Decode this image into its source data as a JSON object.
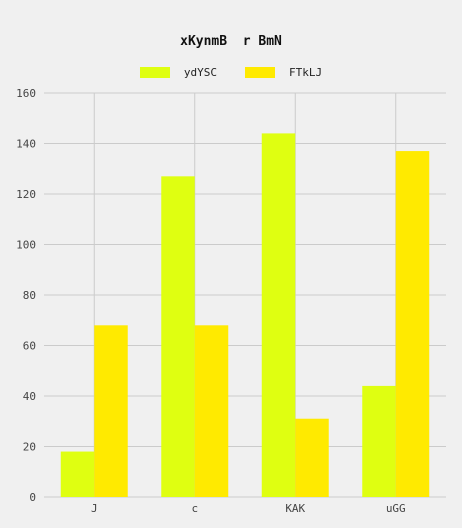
{
  "chart_data": {
    "type": "bar",
    "title": "xKynmB  r BmN",
    "xlabel": "",
    "ylabel": "",
    "categories": [
      "J",
      "c",
      "KAK",
      "uGG"
    ],
    "series": [
      {
        "name": "ydYSC",
        "values": [
          18,
          127,
          144,
          44
        ],
        "color": "#dfff11"
      },
      {
        "name": "FTkLJ",
        "values": [
          68,
          68,
          31,
          137
        ],
        "color": "#ffea00"
      }
    ],
    "ylim": [
      0,
      160
    ],
    "yticks": [
      0,
      20,
      40,
      60,
      80,
      100,
      120,
      140,
      160
    ],
    "grid": true,
    "legend_position": "top-center"
  },
  "colors": {
    "background": "#f0f0f0",
    "grid": "#cbcbcb"
  }
}
